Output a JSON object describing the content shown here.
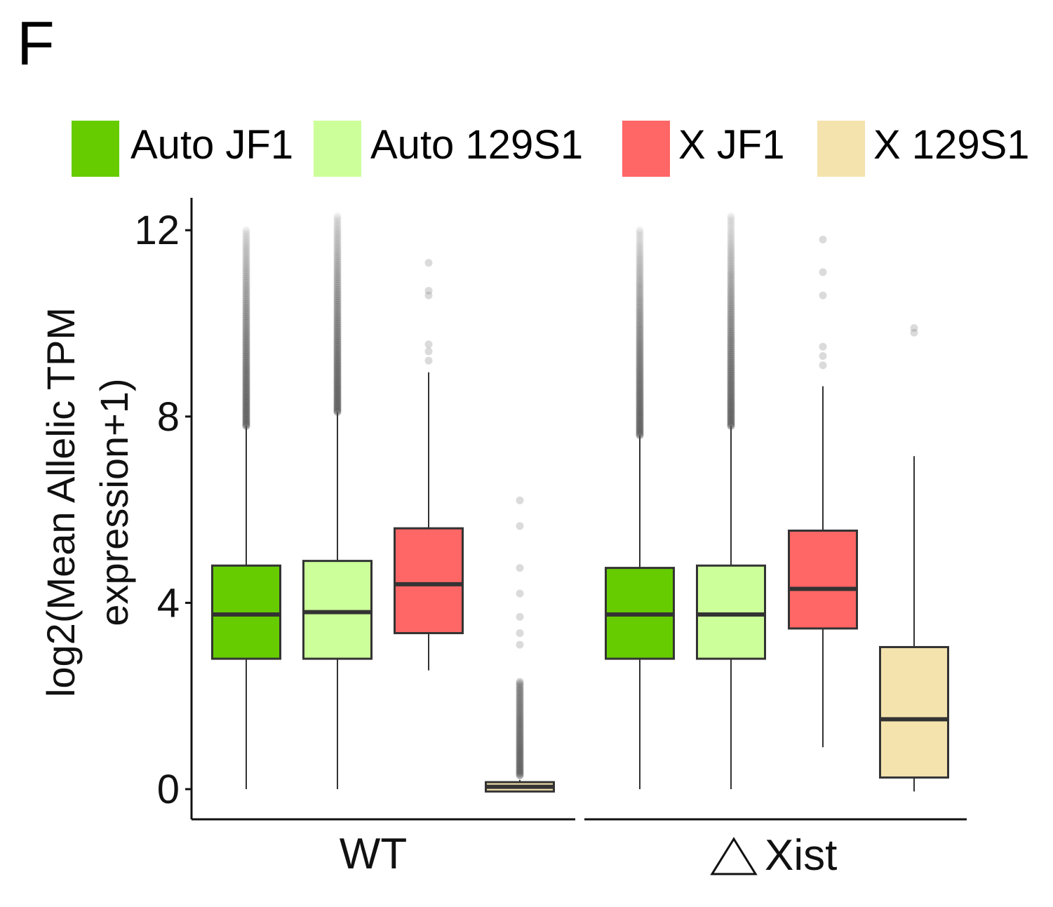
{
  "panel_label": "F",
  "chart_data": {
    "type": "box",
    "ylabel_line1": "log2(Mean Allelic TPM",
    "ylabel_line2": "expression+1)",
    "ylim": [
      -0.6,
      12.6
    ],
    "yticks": [
      0,
      4,
      8,
      12
    ],
    "grid": false,
    "legend_position": "top",
    "groups": [
      "WT",
      "Xist"
    ],
    "series": [
      {
        "name": "Auto JF1",
        "color": "#66cc00"
      },
      {
        "name": "Auto 129S1",
        "color": "#ccff99"
      },
      {
        "name": "X JF1",
        "color": "#ff6666"
      },
      {
        "name": "X 129S1",
        "color": "#f5e3ae"
      }
    ],
    "boxes": [
      {
        "group": "WT",
        "series": "Auto JF1",
        "whisker_low": 0.0,
        "q1": 2.8,
        "median": 3.75,
        "q3": 4.8,
        "whisker_high": 7.8,
        "outliers_from": 7.8,
        "outliers_to": 12.0,
        "outliers": []
      },
      {
        "group": "WT",
        "series": "Auto 129S1",
        "whisker_low": 0.0,
        "q1": 2.8,
        "median": 3.8,
        "q3": 4.9,
        "whisker_high": 8.1,
        "outliers_from": 8.1,
        "outliers_to": 12.3,
        "outliers": []
      },
      {
        "group": "WT",
        "series": "X JF1",
        "whisker_low": 2.55,
        "q1": 3.35,
        "median": 4.4,
        "q3": 5.6,
        "whisker_high": 8.95,
        "outliers_from": null,
        "outliers_to": null,
        "outliers": [
          9.2,
          9.4,
          9.55,
          10.6,
          10.7,
          11.3
        ]
      },
      {
        "group": "WT",
        "series": "X 129S1",
        "whisker_low": -0.05,
        "q1": -0.05,
        "median": 0.05,
        "q3": 0.15,
        "whisker_high": 0.2,
        "outliers_from": 0.3,
        "outliers_to": 2.3,
        "outliers": [
          3.1,
          3.35,
          3.7,
          4.2,
          4.75,
          5.65,
          6.2
        ]
      },
      {
        "group": "Xist",
        "series": "Auto JF1",
        "whisker_low": 0.0,
        "q1": 2.8,
        "median": 3.75,
        "q3": 4.75,
        "whisker_high": 7.6,
        "outliers_from": 7.6,
        "outliers_to": 12.0,
        "outliers": []
      },
      {
        "group": "Xist",
        "series": "Auto 129S1",
        "whisker_low": 0.0,
        "q1": 2.8,
        "median": 3.75,
        "q3": 4.8,
        "whisker_high": 7.8,
        "outliers_from": 7.8,
        "outliers_to": 12.3,
        "outliers": []
      },
      {
        "group": "Xist",
        "series": "X JF1",
        "whisker_low": 0.9,
        "q1": 3.45,
        "median": 4.3,
        "q3": 5.55,
        "whisker_high": 8.65,
        "outliers_from": null,
        "outliers_to": null,
        "outliers": [
          9.1,
          9.3,
          9.5,
          10.6,
          11.1,
          11.8
        ]
      },
      {
        "group": "Xist",
        "series": "X 129S1",
        "whisker_low": -0.05,
        "q1": 0.25,
        "median": 1.5,
        "q3": 3.05,
        "whisker_high": 7.15,
        "outliers_from": null,
        "outliers_to": null,
        "outliers": [
          9.8,
          9.9
        ]
      }
    ]
  }
}
